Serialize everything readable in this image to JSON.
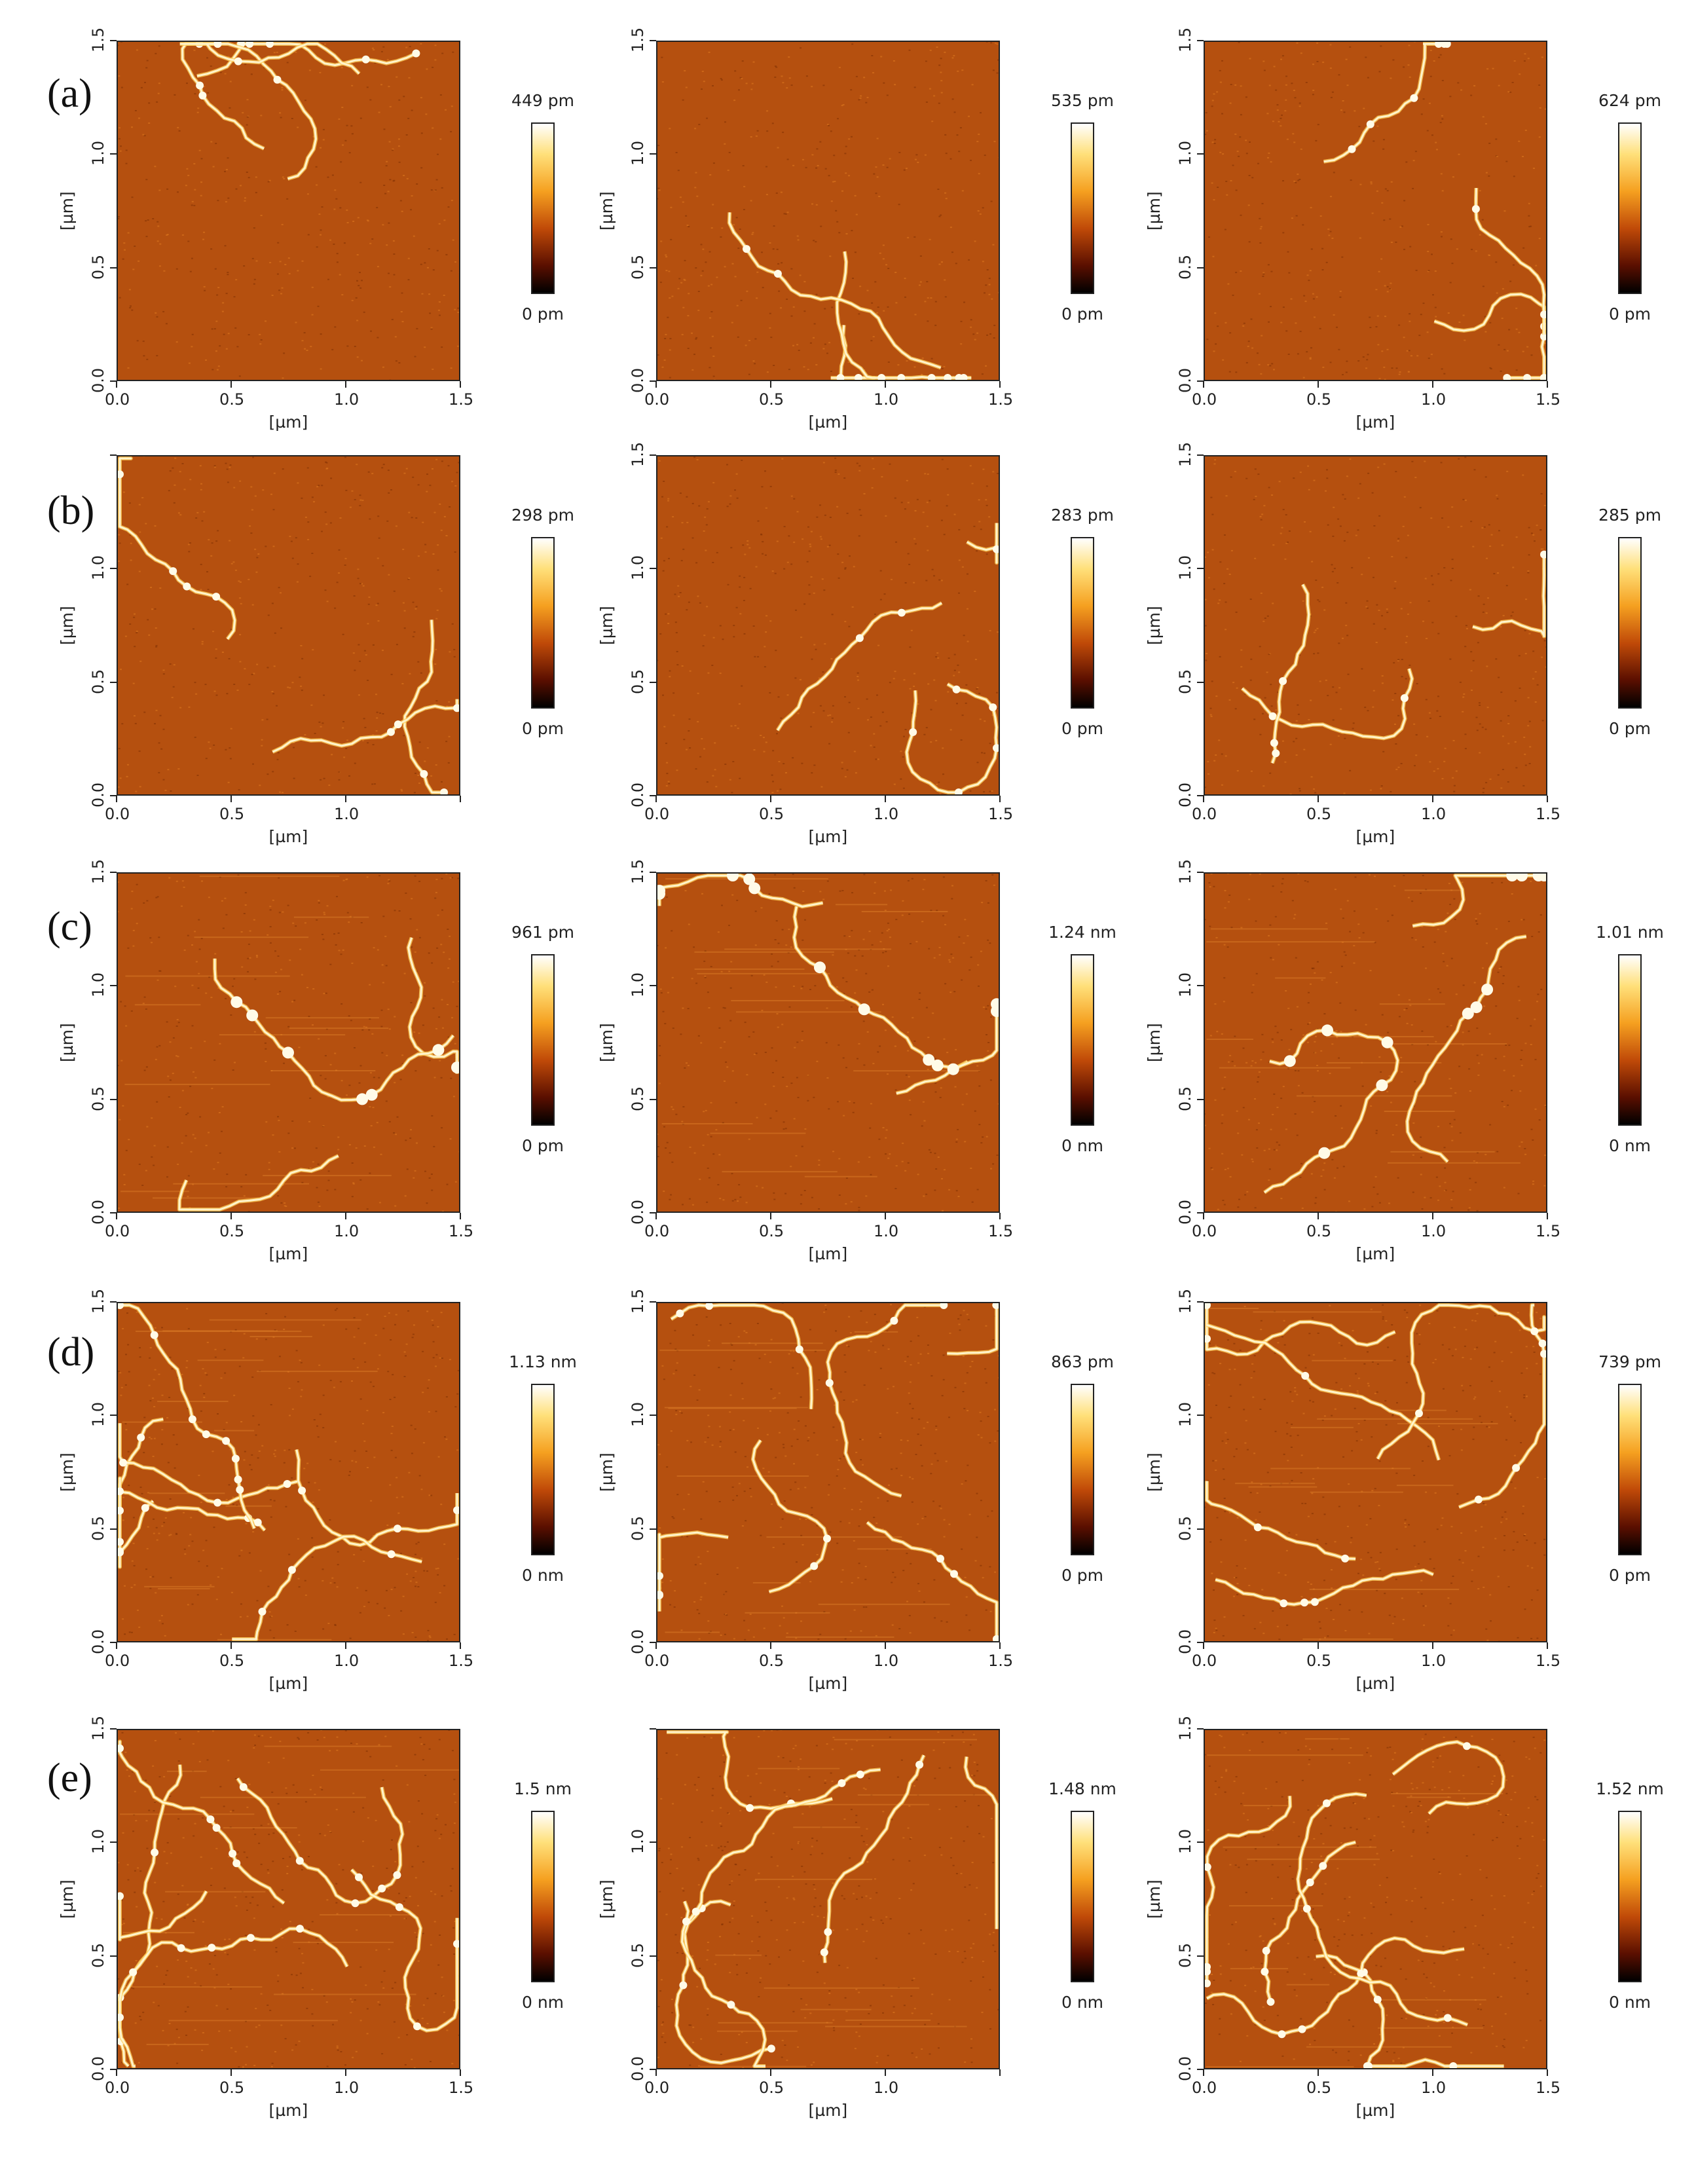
{
  "row_labels": [
    "(a)",
    "(b)",
    "(c)",
    "(d)",
    "(e)"
  ],
  "axis_unit_label": "[µm]",
  "colors": {
    "substrate": "#b5500f",
    "fiber": "#fff4cc",
    "fiber_glow": "#ffcf5a"
  },
  "panels": [
    {
      "row": "(a)",
      "col": 1,
      "scale_max": "449 pm",
      "scale_min": "0 pm",
      "x_ticks": [
        "0.0",
        "0.5",
        "1.0",
        "1.5"
      ],
      "y_ticks": [
        "0.0",
        "0.5",
        "1.0",
        "1.5"
      ]
    },
    {
      "row": "(a)",
      "col": 2,
      "scale_max": "535 pm",
      "scale_min": "0 pm",
      "x_ticks": [
        "0.0",
        "0.5",
        "1.0",
        "1.5"
      ],
      "y_ticks": [
        "0.0",
        "0.5",
        "1.0",
        "1.5"
      ]
    },
    {
      "row": "(a)",
      "col": 3,
      "scale_max": "624 pm",
      "scale_min": "0 pm",
      "x_ticks": [
        "0.0",
        "0.5",
        "1.0",
        "1.5"
      ],
      "y_ticks": [
        "0.0",
        "0.5",
        "1.0",
        "1.5"
      ]
    },
    {
      "row": "(b)",
      "col": 1,
      "scale_max": "298 pm",
      "scale_min": "0 pm",
      "x_ticks": [
        "0.0",
        "0.5",
        "1.0",
        ""
      ],
      "y_ticks": [
        "0.0",
        "0.5",
        "1.0",
        ""
      ]
    },
    {
      "row": "(b)",
      "col": 2,
      "scale_max": "283 pm",
      "scale_min": "0 pm",
      "x_ticks": [
        "0.0",
        "0.5",
        "1.0",
        "1.5"
      ],
      "y_ticks": [
        "0.0",
        "0.5",
        "1.0",
        "1.5"
      ]
    },
    {
      "row": "(b)",
      "col": 3,
      "scale_max": "285 pm",
      "scale_min": "0 pm",
      "x_ticks": [
        "0.0",
        "0.5",
        "1.0",
        "1.5"
      ],
      "y_ticks": [
        "0.0",
        "0.5",
        "1.0",
        "1.5"
      ]
    },
    {
      "row": "(c)",
      "col": 1,
      "scale_max": "961 pm",
      "scale_min": "0 pm",
      "x_ticks": [
        "0.0",
        "0.5",
        "1.0",
        "1.5"
      ],
      "y_ticks": [
        "0.0",
        "0.5",
        "1.0",
        "1.5"
      ]
    },
    {
      "row": "(c)",
      "col": 2,
      "scale_max": "1.24 nm",
      "scale_min": "0 nm",
      "x_ticks": [
        "0.0",
        "0.5",
        "1.0",
        "1.5"
      ],
      "y_ticks": [
        "0.0",
        "0.5",
        "1.0",
        "1.5"
      ]
    },
    {
      "row": "(c)",
      "col": 3,
      "scale_max": "1.01 nm",
      "scale_min": "0 nm",
      "x_ticks": [
        "0.0",
        "0.5",
        "1.0",
        "1.5"
      ],
      "y_ticks": [
        "0.0",
        "0.5",
        "1.0",
        "1.5"
      ]
    },
    {
      "row": "(d)",
      "col": 1,
      "scale_max": "1.13 nm",
      "scale_min": "0 nm",
      "x_ticks": [
        "0.0",
        "0.5",
        "1.0",
        "1.5"
      ],
      "y_ticks": [
        "0.0",
        "0.5",
        "1.0",
        "1.5"
      ]
    },
    {
      "row": "(d)",
      "col": 2,
      "scale_max": "863 pm",
      "scale_min": "0 pm",
      "x_ticks": [
        "0.0",
        "0.5",
        "1.0",
        "1.5"
      ],
      "y_ticks": [
        "0.0",
        "0.5",
        "1.0",
        "1.5"
      ]
    },
    {
      "row": "(d)",
      "col": 3,
      "scale_max": "739 pm",
      "scale_min": "0 pm",
      "x_ticks": [
        "0.0",
        "0.5",
        "1.0",
        "1.5"
      ],
      "y_ticks": [
        "0.0",
        "0.5",
        "1.0",
        "1.5"
      ]
    },
    {
      "row": "(e)",
      "col": 1,
      "scale_max": "1.5 nm",
      "scale_min": "0 nm",
      "x_ticks": [
        "0.0",
        "0.5",
        "1.0",
        "1.5"
      ],
      "y_ticks": [
        "0.0",
        "0.5",
        "1.0",
        "1.5"
      ]
    },
    {
      "row": "(e)",
      "col": 2,
      "scale_max": "1.48 nm",
      "scale_min": "0 nm",
      "x_ticks": [
        "0.0",
        "0.5",
        "1.0",
        ""
      ],
      "y_ticks": [
        "0.0",
        "0.5",
        "1.0",
        ""
      ]
    },
    {
      "row": "(e)",
      "col": 3,
      "scale_max": "1.52 nm",
      "scale_min": "0 nm",
      "x_ticks": [
        "0.0",
        "0.5",
        "1.0",
        "1.5"
      ],
      "y_ticks": [
        "0.0",
        "0.5",
        "1.0",
        "1.5"
      ]
    }
  ]
}
